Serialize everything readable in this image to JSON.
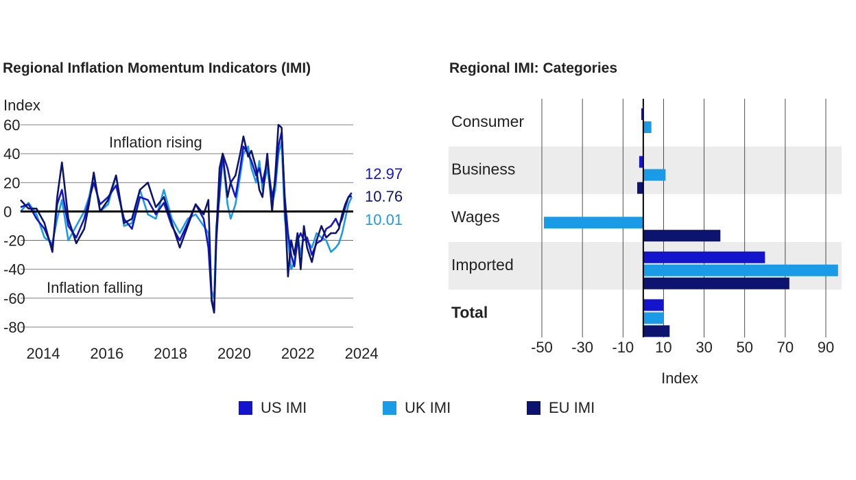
{
  "colors": {
    "us": "#1414cc",
    "uk": "#1a9be8",
    "eu": "#0c1470",
    "grid": "#000000",
    "band": "#ececec"
  },
  "chart_data": [
    {
      "type": "line",
      "title": "Regional Inflation Momentum Indicators (IMI)",
      "ylabel": "Index",
      "ylim": [
        -80,
        60
      ],
      "yticks": [
        60,
        40,
        20,
        0,
        -20,
        -40,
        -60,
        -80
      ],
      "xlim": [
        2014,
        2024.45
      ],
      "xticks": [
        "2014",
        "2016",
        "2018",
        "2020",
        "2022",
        "2024"
      ],
      "annotations": {
        "rising": "Inflation rising",
        "falling": "Inflation falling"
      },
      "end_labels": [
        "12.97",
        "10.76",
        "10.01"
      ],
      "series": [
        {
          "name": "US IMI",
          "key": "us",
          "x": [
            2014.0,
            2014.25,
            2014.5,
            2014.75,
            2015.0,
            2015.15,
            2015.3,
            2015.5,
            2015.75,
            2016.0,
            2016.15,
            2016.3,
            2016.5,
            2016.75,
            2017.0,
            2017.25,
            2017.5,
            2017.75,
            2018.0,
            2018.25,
            2018.5,
            2018.75,
            2019.0,
            2019.25,
            2019.5,
            2019.75,
            2019.9,
            2020.0,
            2020.08,
            2020.15,
            2020.25,
            2020.35,
            2020.5,
            2020.6,
            2020.75,
            2020.9,
            2021.0,
            2021.15,
            2021.25,
            2021.4,
            2021.5,
            2021.6,
            2021.75,
            2021.9,
            2022.0,
            2022.1,
            2022.2,
            2022.3,
            2022.4,
            2022.5,
            2022.6,
            2022.7,
            2022.8,
            2022.9,
            2023.0,
            2023.15,
            2023.3,
            2023.45,
            2023.6,
            2023.75,
            2023.9,
            2024.0,
            2024.1,
            2024.2,
            2024.3,
            2024.4
          ],
          "values": [
            3,
            5,
            -5,
            -12,
            -25,
            5,
            15,
            -10,
            -18,
            -5,
            8,
            20,
            5,
            10,
            18,
            -5,
            -12,
            10,
            8,
            -2,
            6,
            -10,
            -20,
            -8,
            5,
            -5,
            -25,
            -60,
            -70,
            -20,
            15,
            40,
            30,
            20,
            10,
            30,
            45,
            40,
            35,
            25,
            30,
            20,
            35,
            10,
            20,
            45,
            55,
            10,
            -15,
            -30,
            -38,
            -20,
            -15,
            -20,
            -18,
            -30,
            -22,
            -20,
            -12,
            -10,
            -5,
            -10,
            -5,
            3,
            10,
            12.97
          ]
        },
        {
          "name": "UK IMI",
          "key": "uk",
          "x": [
            2014.0,
            2014.25,
            2014.5,
            2014.75,
            2015.0,
            2015.15,
            2015.3,
            2015.5,
            2015.75,
            2016.0,
            2016.15,
            2016.3,
            2016.5,
            2016.75,
            2017.0,
            2017.25,
            2017.5,
            2017.75,
            2018.0,
            2018.25,
            2018.5,
            2018.75,
            2019.0,
            2019.25,
            2019.5,
            2019.75,
            2019.9,
            2020.0,
            2020.08,
            2020.15,
            2020.25,
            2020.35,
            2020.5,
            2020.6,
            2020.75,
            2020.9,
            2021.0,
            2021.15,
            2021.25,
            2021.4,
            2021.5,
            2021.6,
            2021.75,
            2021.9,
            2022.0,
            2022.1,
            2022.2,
            2022.3,
            2022.4,
            2022.5,
            2022.6,
            2022.7,
            2022.8,
            2022.9,
            2023.0,
            2023.15,
            2023.3,
            2023.45,
            2023.6,
            2023.75,
            2023.9,
            2024.0,
            2024.1,
            2024.2,
            2024.3,
            2024.4
          ],
          "values": [
            0,
            6,
            -2,
            -18,
            -22,
            -5,
            8,
            -20,
            -10,
            0,
            10,
            25,
            0,
            5,
            25,
            -10,
            -8,
            15,
            -2,
            -5,
            15,
            -5,
            -15,
            -5,
            -2,
            -10,
            -15,
            -55,
            -60,
            -10,
            10,
            38,
            5,
            -5,
            5,
            25,
            40,
            45,
            30,
            20,
            35,
            15,
            30,
            5,
            15,
            40,
            48,
            -5,
            -20,
            -40,
            -35,
            -15,
            -30,
            -15,
            -20,
            -25,
            -15,
            -18,
            -20,
            -28,
            -25,
            -22,
            -15,
            -5,
            5,
            10.01
          ]
        },
        {
          "name": "EU IMI",
          "key": "eu",
          "x": [
            2014.0,
            2014.25,
            2014.5,
            2014.75,
            2015.0,
            2015.15,
            2015.3,
            2015.5,
            2015.75,
            2016.0,
            2016.15,
            2016.3,
            2016.5,
            2016.75,
            2017.0,
            2017.25,
            2017.5,
            2017.75,
            2018.0,
            2018.25,
            2018.5,
            2018.75,
            2019.0,
            2019.25,
            2019.5,
            2019.75,
            2019.9,
            2020.0,
            2020.08,
            2020.15,
            2020.25,
            2020.35,
            2020.5,
            2020.6,
            2020.75,
            2020.9,
            2021.0,
            2021.15,
            2021.25,
            2021.4,
            2021.5,
            2021.6,
            2021.75,
            2021.9,
            2022.0,
            2022.1,
            2022.2,
            2022.3,
            2022.4,
            2022.5,
            2022.6,
            2022.7,
            2022.8,
            2022.9,
            2023.0,
            2023.15,
            2023.3,
            2023.45,
            2023.6,
            2023.75,
            2023.9,
            2024.0,
            2024.1,
            2024.2,
            2024.3,
            2024.4
          ],
          "values": [
            8,
            2,
            2,
            -8,
            -28,
            10,
            34,
            -5,
            -22,
            -12,
            5,
            27,
            0,
            8,
            25,
            -8,
            -5,
            15,
            20,
            3,
            10,
            -8,
            -25,
            -10,
            5,
            -2,
            8,
            -62,
            -70,
            -15,
            30,
            40,
            10,
            20,
            25,
            40,
            52,
            38,
            42,
            30,
            15,
            10,
            40,
            0,
            25,
            60,
            58,
            5,
            -45,
            -20,
            -30,
            -15,
            -40,
            -10,
            -25,
            -35,
            -20,
            -10,
            -18,
            -15,
            -15,
            -12,
            -2,
            5,
            10,
            10.76
          ]
        }
      ]
    },
    {
      "type": "bar",
      "orientation": "horizontal",
      "title": "Regional IMI: Categories",
      "xlabel": "Index",
      "xlim": [
        -55,
        97
      ],
      "xticks": [
        "-50",
        "-30",
        "-10",
        "10",
        "30",
        "50",
        "70",
        "90"
      ],
      "categories": [
        "Consumer",
        "Business",
        "Wages",
        "Imported",
        "Total"
      ],
      "series": [
        {
          "name": "US IMI",
          "key": "us",
          "values": [
            -1,
            -2,
            0,
            60,
            10
          ]
        },
        {
          "name": "UK IMI",
          "key": "uk",
          "values": [
            4,
            11,
            -49,
            96,
            10
          ]
        },
        {
          "name": "EU IMI",
          "key": "eu",
          "values": [
            0,
            -3,
            38,
            72,
            12.97
          ]
        }
      ]
    }
  ],
  "legend": [
    {
      "label": "US IMI",
      "key": "us"
    },
    {
      "label": "UK IMI",
      "key": "uk"
    },
    {
      "label": "EU IMI",
      "key": "eu"
    }
  ]
}
